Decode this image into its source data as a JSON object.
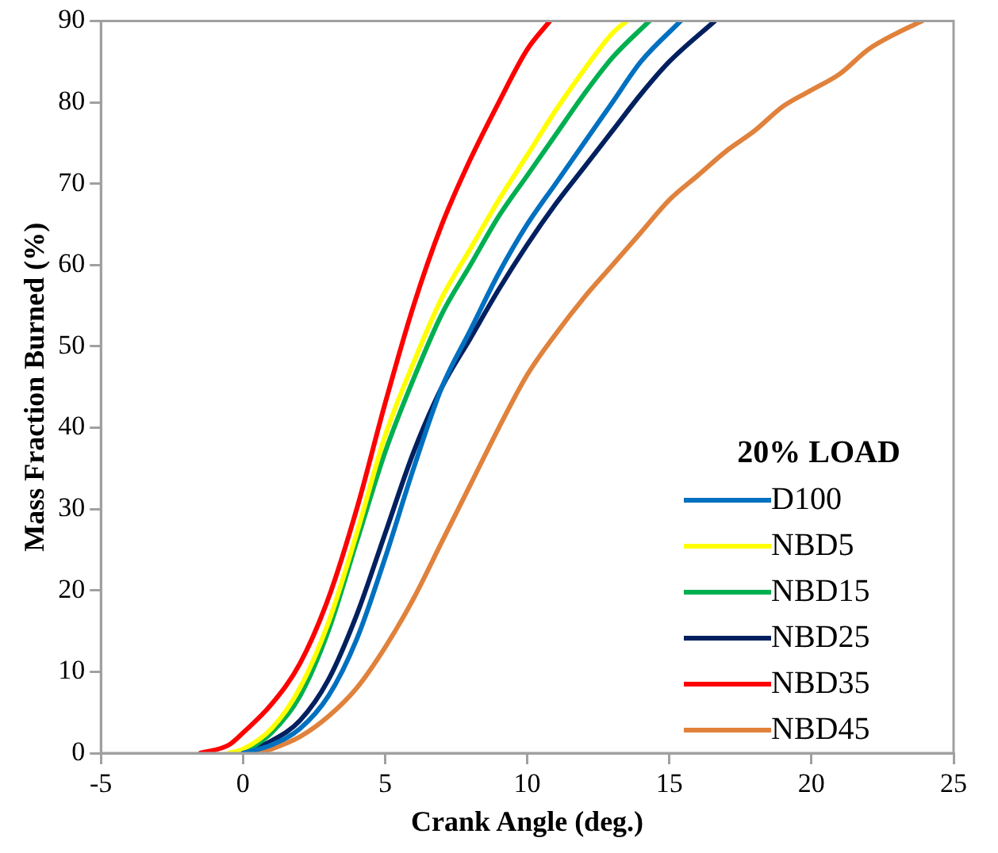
{
  "chart_data": {
    "type": "line",
    "xlabel": "Crank Angle (deg.)",
    "ylabel": "Mass Fraction Burned (%)",
    "legend_title": "20% LOAD",
    "legend": "bottom right",
    "grid": false,
    "marker": "none",
    "line_style": "solid",
    "xlim": [
      -5,
      25
    ],
    "xticks": [
      -5,
      0,
      5,
      10,
      15,
      20,
      25
    ],
    "ylim": [
      0,
      90
    ],
    "yticks": [
      0,
      10,
      20,
      30,
      40,
      50,
      60,
      70,
      80,
      90
    ],
    "series": [
      {
        "name": "D100",
        "color": "#0070c0",
        "x": [
          0,
          1,
          2,
          3,
          4,
          5,
          6,
          7,
          8,
          9,
          10,
          11,
          12,
          13,
          14,
          15.4
        ],
        "values": [
          0,
          1,
          3,
          7,
          14,
          24,
          35,
          45,
          52,
          59,
          65,
          70,
          75,
          80,
          85,
          90
        ]
      },
      {
        "name": "NBD5",
        "color": "#ffff00",
        "x": [
          -0.5,
          0,
          1,
          2,
          3,
          4,
          5,
          6,
          7,
          8,
          9,
          10,
          11,
          12,
          13,
          13.5
        ],
        "values": [
          0,
          0.5,
          3,
          8,
          16,
          27,
          39,
          48,
          56,
          62,
          68,
          73.5,
          79,
          84,
          88.5,
          90
        ]
      },
      {
        "name": "NBD15",
        "color": "#00b050",
        "x": [
          0,
          1,
          2,
          3,
          4,
          5,
          6,
          7,
          8,
          9,
          10,
          11,
          12,
          13,
          14.3
        ],
        "values": [
          0,
          2.5,
          7,
          15,
          26,
          37,
          46,
          54,
          60,
          66,
          71,
          76,
          81,
          85.5,
          90
        ]
      },
      {
        "name": "NBD25",
        "color": "#002060",
        "x": [
          0,
          1,
          2,
          3,
          4,
          5,
          6,
          7,
          8,
          9,
          10,
          11,
          12,
          13,
          14,
          15,
          16.6
        ],
        "values": [
          0,
          1.5,
          4,
          9,
          17,
          27,
          37,
          45,
          51,
          57,
          62.5,
          67.5,
          72,
          76.5,
          81,
          85,
          90
        ]
      },
      {
        "name": "NBD35",
        "color": "#ff0000",
        "x": [
          -1.5,
          -0.5,
          0,
          1,
          2,
          3,
          4,
          5,
          6,
          7,
          8,
          9,
          10,
          10.8
        ],
        "values": [
          0,
          1,
          2.5,
          6,
          11,
          19,
          30,
          43,
          55,
          65,
          73,
          80,
          86.5,
          90
        ]
      },
      {
        "name": "NBD45",
        "color": "#e0823c",
        "x": [
          0.5,
          1,
          2,
          3,
          4,
          5,
          6,
          7,
          8,
          9,
          10,
          11,
          12,
          13,
          14,
          15,
          16,
          17,
          18,
          19,
          20,
          21,
          22,
          23,
          23.9
        ],
        "values": [
          0,
          0.5,
          2,
          4.5,
          8,
          13,
          19,
          26,
          33,
          40,
          46.5,
          51.5,
          56,
          60,
          64,
          68,
          71,
          74,
          76.5,
          79.5,
          81.5,
          83.5,
          86.5,
          88.5,
          90
        ]
      }
    ]
  }
}
